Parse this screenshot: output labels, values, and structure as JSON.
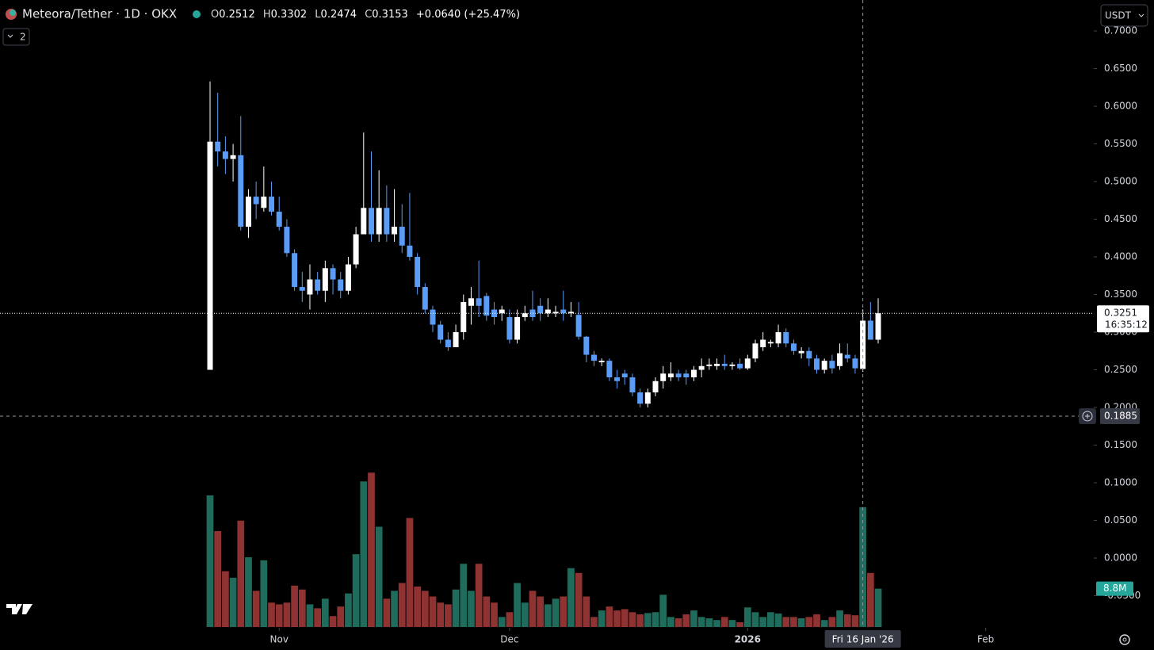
{
  "header": {
    "symbol": "Meteora/Tether · 1D · OKX",
    "o_label": "O",
    "o": "0.2512",
    "h_label": "H",
    "h": "0.3302",
    "l_label": "L",
    "l": "0.2474",
    "c_label": "C",
    "c": "0.3153",
    "change": "+0.0640 (+25.47%)",
    "indicators": "2",
    "currency": "USDT"
  },
  "chart_data": {
    "type": "candlestick",
    "categories": [
      null,
      null,
      null,
      null,
      null,
      null,
      null,
      null,
      null,
      null,
      null,
      null,
      null,
      null,
      null,
      null,
      null,
      null,
      null,
      null,
      null,
      null,
      null,
      null,
      null,
      null,
      null,
      null,
      null,
      null,
      null,
      null,
      null,
      null,
      null,
      null,
      null,
      null,
      null,
      null,
      null,
      null,
      null,
      null,
      null,
      null,
      null,
      null,
      null,
      null,
      null,
      null,
      null,
      null,
      null,
      null,
      null,
      null,
      null,
      null,
      null,
      null,
      null,
      null,
      null,
      null,
      null,
      null,
      null,
      null,
      null,
      null,
      null,
      null,
      null,
      null,
      null,
      null,
      null,
      null,
      null,
      null,
      null,
      null,
      null,
      null,
      null,
      null
    ],
    "ohlc": [
      [
        0.25,
        0.633,
        0.25,
        0.553
      ],
      [
        0.553,
        0.618,
        0.52,
        0.54
      ],
      [
        0.54,
        0.56,
        0.51,
        0.53
      ],
      [
        0.53,
        0.55,
        0.5,
        0.535
      ],
      [
        0.535,
        0.587,
        0.435,
        0.44
      ],
      [
        0.44,
        0.49,
        0.425,
        0.48
      ],
      [
        0.48,
        0.5,
        0.45,
        0.47
      ],
      [
        0.465,
        0.52,
        0.46,
        0.48
      ],
      [
        0.48,
        0.5,
        0.455,
        0.46
      ],
      [
        0.46,
        0.48,
        0.435,
        0.44
      ],
      [
        0.44,
        0.45,
        0.4,
        0.405
      ],
      [
        0.405,
        0.41,
        0.355,
        0.36
      ],
      [
        0.36,
        0.38,
        0.34,
        0.355
      ],
      [
        0.35,
        0.39,
        0.33,
        0.37
      ],
      [
        0.37,
        0.38,
        0.35,
        0.355
      ],
      [
        0.355,
        0.395,
        0.34,
        0.385
      ],
      [
        0.385,
        0.39,
        0.35,
        0.37
      ],
      [
        0.37,
        0.38,
        0.345,
        0.355
      ],
      [
        0.355,
        0.4,
        0.35,
        0.39
      ],
      [
        0.39,
        0.44,
        0.385,
        0.43
      ],
      [
        0.43,
        0.565,
        0.43,
        0.465
      ],
      [
        0.465,
        0.54,
        0.42,
        0.43
      ],
      [
        0.43,
        0.515,
        0.42,
        0.465
      ],
      [
        0.465,
        0.495,
        0.42,
        0.43
      ],
      [
        0.43,
        0.49,
        0.42,
        0.44
      ],
      [
        0.44,
        0.47,
        0.405,
        0.415
      ],
      [
        0.415,
        0.485,
        0.395,
        0.4
      ],
      [
        0.4,
        0.405,
        0.35,
        0.36
      ],
      [
        0.36,
        0.365,
        0.325,
        0.33
      ],
      [
        0.33,
        0.335,
        0.3,
        0.31
      ],
      [
        0.31,
        0.315,
        0.285,
        0.29
      ],
      [
        0.29,
        0.3,
        0.275,
        0.28
      ],
      [
        0.28,
        0.31,
        0.28,
        0.3
      ],
      [
        0.3,
        0.35,
        0.29,
        0.34
      ],
      [
        0.335,
        0.36,
        0.31,
        0.345
      ],
      [
        0.345,
        0.395,
        0.32,
        0.335
      ],
      [
        0.348,
        0.352,
        0.315,
        0.322
      ],
      [
        0.33,
        0.34,
        0.31,
        0.32
      ],
      [
        0.325,
        0.335,
        0.315,
        0.33
      ],
      [
        0.32,
        0.33,
        0.285,
        0.29
      ],
      [
        0.29,
        0.33,
        0.285,
        0.32
      ],
      [
        0.32,
        0.335,
        0.315,
        0.325
      ],
      [
        0.33,
        0.355,
        0.315,
        0.32
      ],
      [
        0.335,
        0.345,
        0.315,
        0.325
      ],
      [
        0.325,
        0.345,
        0.32,
        0.33
      ],
      [
        0.325,
        0.335,
        0.32,
        0.327
      ],
      [
        0.33,
        0.355,
        0.315,
        0.325
      ],
      [
        0.325,
        0.34,
        0.32,
        0.327
      ],
      [
        0.323,
        0.34,
        0.29,
        0.294
      ],
      [
        0.294,
        0.295,
        0.26,
        0.27
      ],
      [
        0.27,
        0.275,
        0.255,
        0.262
      ],
      [
        0.26,
        0.265,
        0.255,
        0.262
      ],
      [
        0.262,
        0.265,
        0.235,
        0.24
      ],
      [
        0.24,
        0.25,
        0.225,
        0.235
      ],
      [
        0.245,
        0.25,
        0.23,
        0.24
      ],
      [
        0.24,
        0.245,
        0.215,
        0.22
      ],
      [
        0.22,
        0.225,
        0.2,
        0.205
      ],
      [
        0.205,
        0.225,
        0.2,
        0.22
      ],
      [
        0.22,
        0.24,
        0.215,
        0.235
      ],
      [
        0.235,
        0.255,
        0.225,
        0.245
      ],
      [
        0.24,
        0.26,
        0.235,
        0.245
      ],
      [
        0.245,
        0.25,
        0.235,
        0.24
      ],
      [
        0.245,
        0.25,
        0.23,
        0.24
      ],
      [
        0.24,
        0.255,
        0.235,
        0.25
      ],
      [
        0.25,
        0.265,
        0.24,
        0.255
      ],
      [
        0.255,
        0.265,
        0.25,
        0.257
      ],
      [
        0.255,
        0.265,
        0.25,
        0.258
      ],
      [
        0.258,
        0.27,
        0.25,
        0.255
      ],
      [
        0.255,
        0.26,
        0.25,
        0.257
      ],
      [
        0.258,
        0.265,
        0.25,
        0.252
      ],
      [
        0.252,
        0.27,
        0.25,
        0.265
      ],
      [
        0.265,
        0.29,
        0.26,
        0.285
      ],
      [
        0.28,
        0.3,
        0.275,
        0.29
      ],
      [
        0.285,
        0.29,
        0.28,
        0.287
      ],
      [
        0.285,
        0.31,
        0.28,
        0.3
      ],
      [
        0.3,
        0.305,
        0.28,
        0.285
      ],
      [
        0.285,
        0.29,
        0.27,
        0.275
      ],
      [
        0.272,
        0.28,
        0.265,
        0.275
      ],
      [
        0.275,
        0.28,
        0.255,
        0.265
      ],
      [
        0.265,
        0.27,
        0.245,
        0.25
      ],
      [
        0.25,
        0.265,
        0.245,
        0.262
      ],
      [
        0.262,
        0.27,
        0.245,
        0.252
      ],
      [
        0.255,
        0.285,
        0.25,
        0.272
      ],
      [
        0.27,
        0.285,
        0.26,
        0.265
      ],
      [
        0.265,
        0.27,
        0.245,
        0.252
      ],
      [
        0.2512,
        0.3302,
        0.2474,
        0.3153
      ],
      [
        0.3153,
        0.34,
        0.29,
        0.29
      ],
      [
        0.29,
        0.345,
        0.285,
        0.3251
      ]
    ],
    "volume": [
      30.2,
      22,
      12.8,
      11.3,
      24.4,
      16,
      8.3,
      15.3,
      5.6,
      5.2,
      5.6,
      9.5,
      8.6,
      5.2,
      4.3,
      6.5,
      2.5,
      4.7,
      7.7,
      16.7,
      33.4,
      35.4,
      23,
      6.5,
      8.3,
      10.1,
      25,
      9.3,
      8.3,
      7,
      5.6,
      5.2,
      8.6,
      14.5,
      8.3,
      14.5,
      7,
      5.6,
      2.3,
      3.4,
      10.1,
      5.6,
      8.3,
      7,
      5.2,
      6.5,
      7,
      13.5,
      12.4,
      7,
      2.3,
      3.8,
      4.7,
      3.8,
      4.1,
      3.4,
      2.9,
      3.2,
      3.4,
      7.4,
      2.3,
      2,
      2.9,
      3.8,
      2.3,
      2,
      1.6,
      2.3,
      1.6,
      1.1,
      4.5,
      3.4,
      2.3,
      3.4,
      3.1,
      2.3,
      2.3,
      2,
      2.3,
      2.9,
      1.6,
      2.3,
      3.8,
      2.9,
      2.7,
      27.5,
      12.4,
      8.8
    ],
    "volume_label": "8.8M",
    "up_color": "#ffffff",
    "down_color": "#5b9cf6",
    "volume_up_color": "#1f6b5c",
    "volume_down_color": "#8e3232",
    "xlim": [
      -27.35,
      115.07
    ],
    "xticks": [
      {
        "value": 9,
        "label": "Nov"
      },
      {
        "value": 39,
        "label": "Dec"
      },
      {
        "value": 70,
        "label": "2026"
      },
      {
        "value": 101,
        "label": "Feb"
      }
    ],
    "ylim": [
      -0.0905,
      0.7411
    ],
    "yticks": [
      {
        "value": 0.7,
        "label": "0.7000"
      },
      {
        "value": 0.65,
        "label": "0.6500"
      },
      {
        "value": 0.6,
        "label": "0.6000"
      },
      {
        "value": 0.55,
        "label": "0.5500"
      },
      {
        "value": 0.5,
        "label": "0.5000"
      },
      {
        "value": 0.45,
        "label": "0.4500"
      },
      {
        "value": 0.4,
        "label": "0.4000"
      },
      {
        "value": 0.35,
        "label": "0.3500"
      },
      {
        "value": 0.3,
        "label": "0.3000"
      },
      {
        "value": 0.25,
        "label": "0.2500"
      },
      {
        "value": 0.2,
        "label": "0.2000"
      },
      {
        "value": 0.15,
        "label": "0.1500"
      },
      {
        "value": 0.1,
        "label": "0.1000"
      },
      {
        "value": 0.05,
        "label": "0.0500"
      },
      {
        "value": 0,
        "label": "0.0000"
      },
      {
        "value": -0.05,
        "label": "-0.0500"
      }
    ],
    "volume_ylim": [
      0,
      40
    ],
    "last_price": 0.3251,
    "countdown": "16:35:12",
    "crosshair": {
      "index": 85,
      "price": 0.1885,
      "date_label": "Fri 16 Jan '26"
    }
  }
}
